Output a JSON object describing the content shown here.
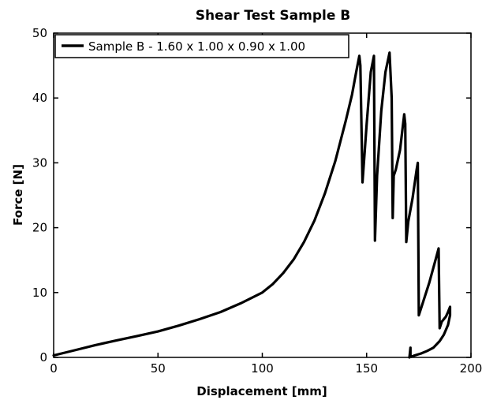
{
  "chart_data": {
    "type": "line",
    "title": "Shear Test Sample B",
    "xlabel": "Displacement [mm]",
    "ylabel": "Force [N]",
    "xlim": [
      0,
      200
    ],
    "ylim": [
      0,
      50
    ],
    "xticks": [
      0,
      50,
      100,
      150,
      200
    ],
    "yticks": [
      0,
      10,
      20,
      30,
      40,
      50
    ],
    "grid": false,
    "legend_position": "top-left",
    "series": [
      {
        "name": "Sample B - 1.60 x 1.00 x 0.90 x 1.00",
        "color": "#000000",
        "x": [
          0,
          10,
          20,
          30,
          40,
          50,
          60,
          70,
          80,
          90,
          100,
          105,
          110,
          115,
          120,
          125,
          130,
          135,
          140,
          143,
          145,
          146.5,
          147,
          148,
          150,
          152,
          153.5,
          154,
          155,
          157,
          159,
          161,
          162,
          162.5,
          163,
          164,
          166,
          168,
          168.5,
          169,
          170,
          172,
          174,
          174.5,
          175,
          177,
          180,
          183,
          184.5,
          185,
          186,
          188,
          189,
          190,
          190,
          189,
          187,
          185,
          182,
          179,
          176,
          173,
          171.5,
          171,
          171,
          170.5
        ],
        "y": [
          0.3,
          1.1,
          1.9,
          2.6,
          3.3,
          4.0,
          4.9,
          5.9,
          7.0,
          8.4,
          10.0,
          11.3,
          13.0,
          15.1,
          17.8,
          21.1,
          25.3,
          30.3,
          36.5,
          40.5,
          44.0,
          46.5,
          45.0,
          27.0,
          36.0,
          44.0,
          46.5,
          18.0,
          28.0,
          38.0,
          44.0,
          47.0,
          40.0,
          21.5,
          28.0,
          29.0,
          32.0,
          37.5,
          36.0,
          17.8,
          21.0,
          24.5,
          29.0,
          30.0,
          6.5,
          8.5,
          11.5,
          15.0,
          16.8,
          4.5,
          5.5,
          6.3,
          7.0,
          7.8,
          6.5,
          5.0,
          3.5,
          2.5,
          1.5,
          1.0,
          0.6,
          0.3,
          0.1,
          0.3,
          1.5,
          0.0
        ]
      }
    ]
  }
}
